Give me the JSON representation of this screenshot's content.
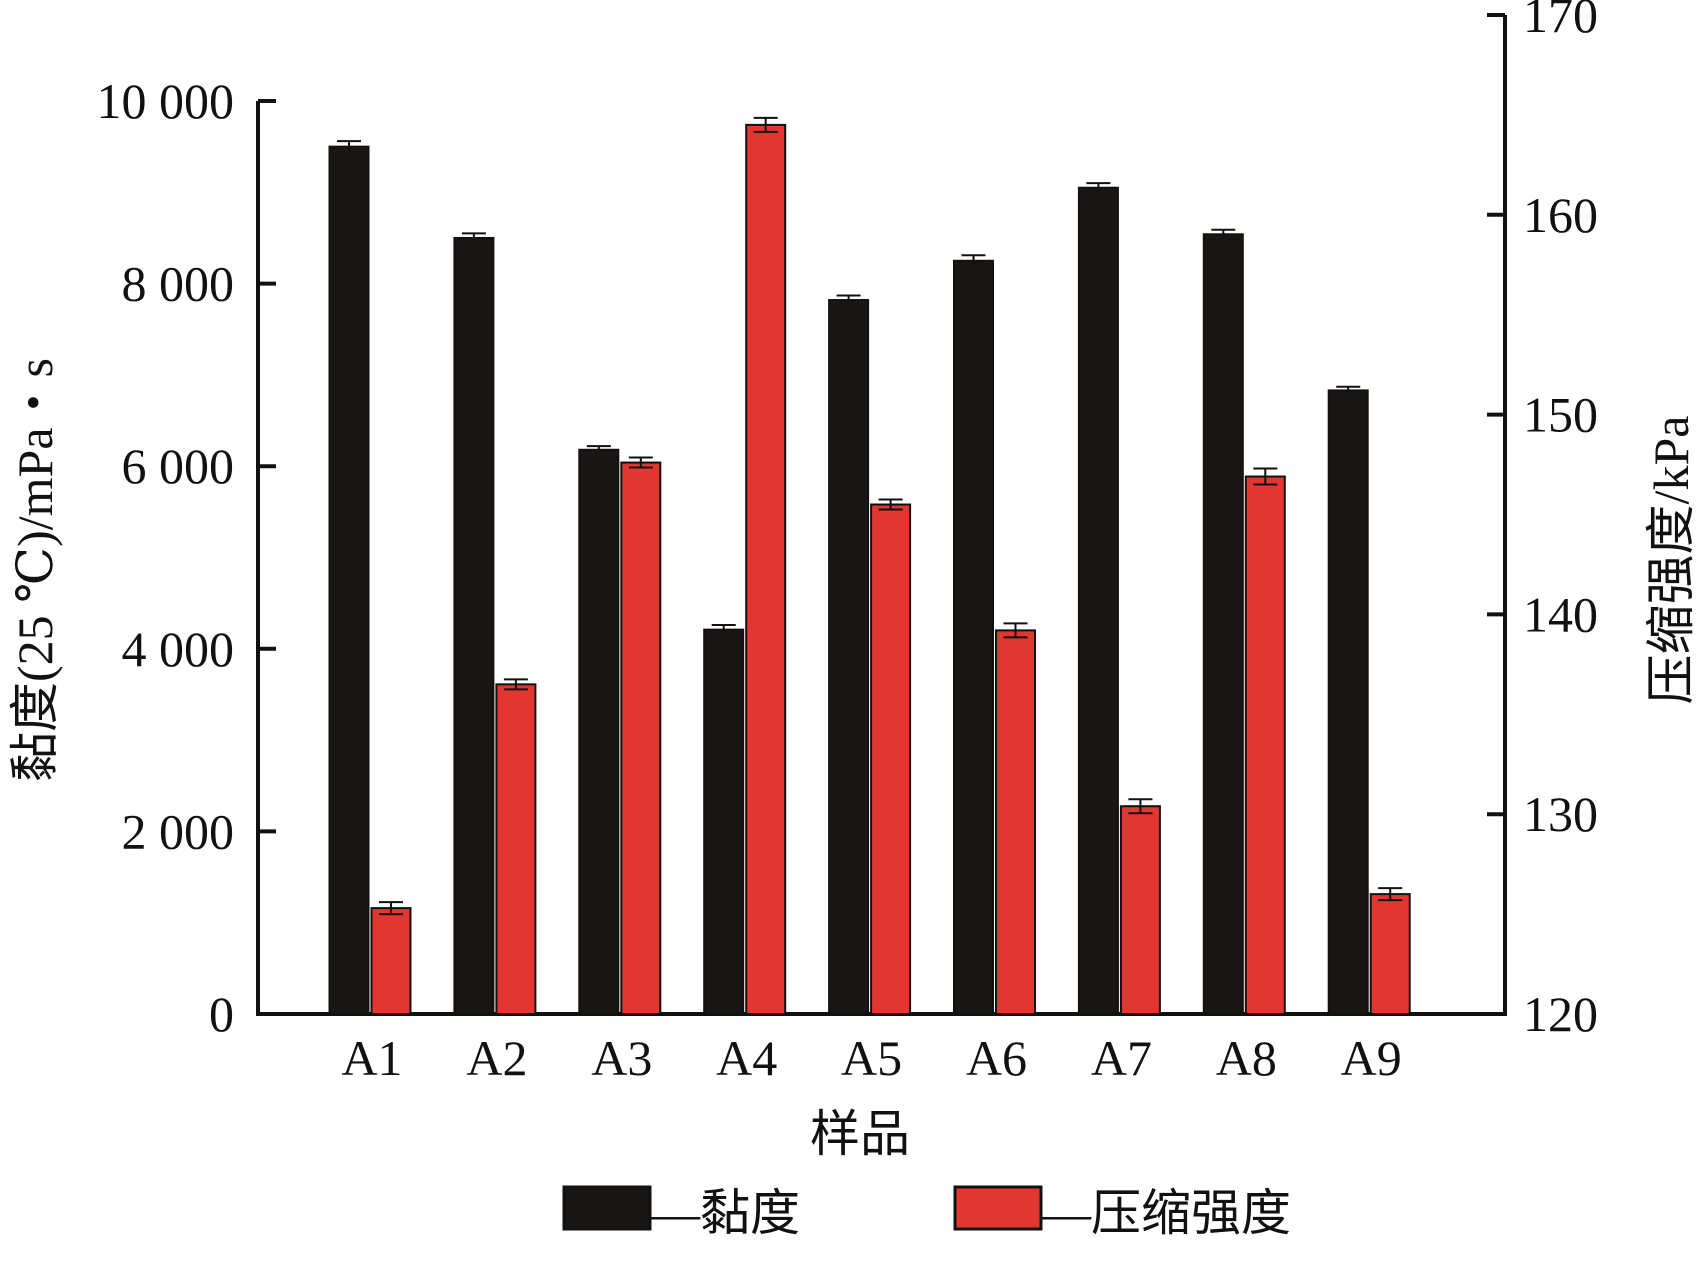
{
  "chart_data": {
    "type": "bar",
    "categories": [
      "A1",
      "A2",
      "A3",
      "A4",
      "A5",
      "A6",
      "A7",
      "A8",
      "A9"
    ],
    "xlabel": "样品",
    "y_left": {
      "label": "黏度(25 ℃)/mPa・s",
      "range": [
        0,
        10000
      ],
      "ticks": [
        0,
        2000,
        4000,
        6000,
        8000,
        10000
      ],
      "tick_labels": [
        "0",
        "2 000",
        "4 000",
        "6 000",
        "8 000",
        "10 000"
      ]
    },
    "y_right": {
      "label": "压缩强度/kPa",
      "range": [
        120,
        170
      ],
      "ticks": [
        120,
        130,
        140,
        150,
        160,
        170
      ],
      "tick_labels": [
        "120",
        "130",
        "140",
        "150",
        "160",
        "170"
      ]
    },
    "series": [
      {
        "name": "黏度",
        "axis": "left",
        "color": "#1a1614",
        "values": [
          9500,
          8500,
          6180,
          4210,
          7820,
          8250,
          9050,
          8540,
          6830
        ],
        "errors": [
          60,
          50,
          40,
          50,
          50,
          60,
          50,
          50,
          40
        ]
      },
      {
        "name": "压缩强度",
        "axis": "right",
        "color": "#e23631",
        "values": [
          125.3,
          136.5,
          147.6,
          164.5,
          145.5,
          139.2,
          130.4,
          146.9,
          126.0
        ],
        "errors": [
          0.3,
          0.25,
          0.25,
          0.35,
          0.25,
          0.35,
          0.35,
          0.4,
          0.3
        ]
      }
    ],
    "legend": {
      "position": "bottom",
      "entries": [
        "—黏度",
        "—压缩强度"
      ]
    },
    "grid": false
  }
}
